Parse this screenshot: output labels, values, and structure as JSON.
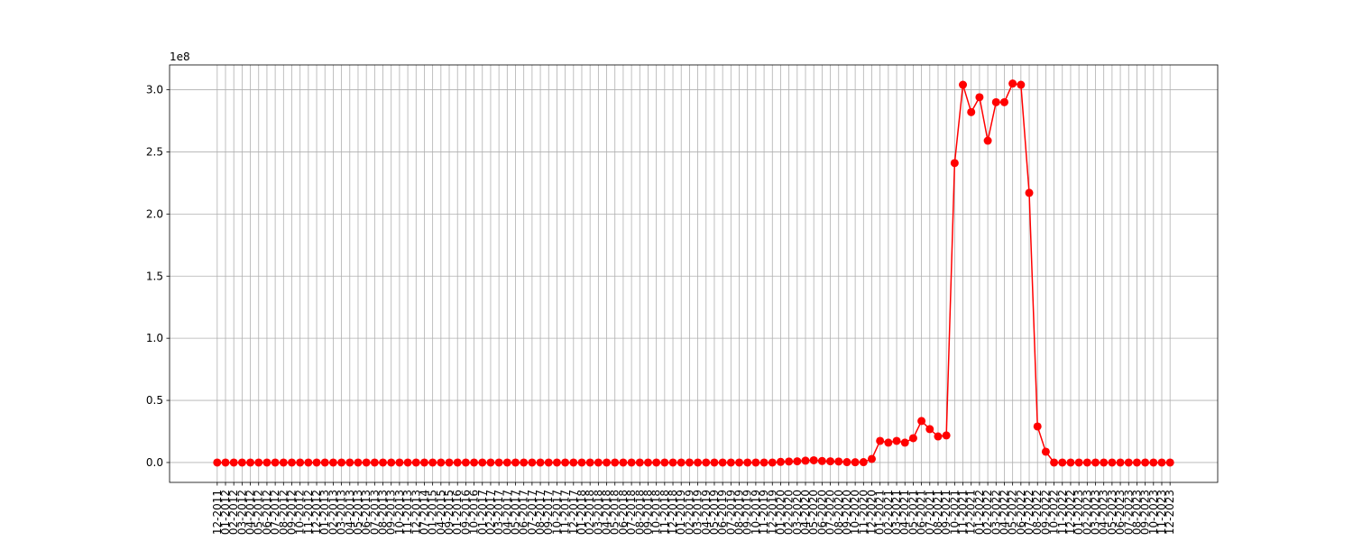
{
  "chart_data": {
    "type": "line",
    "categories": [
      "12-2011",
      "01-2012",
      "02-2012",
      "03-2012",
      "04-2012",
      "05-2012",
      "06-2012",
      "07-2012",
      "08-2012",
      "09-2012",
      "10-2012",
      "11-2012",
      "12-2012",
      "01-2013",
      "02-2013",
      "03-2013",
      "04-2013",
      "05-2013",
      "06-2013",
      "07-2013",
      "08-2013",
      "09-2013",
      "10-2013",
      "11-2013",
      "12-2013",
      "07-2014",
      "01-2015",
      "04-2015",
      "09-2015",
      "01-2016",
      "09-2016",
      "10-2016",
      "01-2017",
      "02-2017",
      "03-2017",
      "04-2017",
      "05-2017",
      "06-2017",
      "07-2017",
      "08-2017",
      "09-2017",
      "10-2017",
      "11-2017",
      "12-2017",
      "01-2018",
      "02-2018",
      "03-2018",
      "04-2018",
      "05-2018",
      "06-2018",
      "07-2018",
      "08-2018",
      "09-2018",
      "10-2018",
      "11-2018",
      "12-2018",
      "01-2019",
      "02-2019",
      "03-2019",
      "04-2019",
      "05-2019",
      "06-2019",
      "07-2019",
      "08-2019",
      "09-2019",
      "10-2019",
      "11-2019",
      "12-2019",
      "01-2020",
      "02-2020",
      "03-2020",
      "04-2020",
      "05-2020",
      "06-2020",
      "07-2020",
      "08-2020",
      "09-2020",
      "10-2020",
      "11-2020",
      "12-2020",
      "01-2021",
      "02-2021",
      "03-2021",
      "04-2021",
      "05-2021",
      "06-2021",
      "07-2021",
      "08-2021",
      "09-2021",
      "10-2021",
      "11-2021",
      "12-2021",
      "01-2022",
      "02-2022",
      "03-2022",
      "04-2022",
      "05-2022",
      "06-2022",
      "07-2022",
      "08-2022",
      "09-2022",
      "10-2022",
      "11-2022",
      "12-2022",
      "01-2023",
      "02-2023",
      "03-2023",
      "04-2023",
      "05-2023",
      "06-2023",
      "07-2023",
      "08-2023",
      "09-2023",
      "10-2023",
      "11-2023",
      "12-2023"
    ],
    "series": [
      {
        "color": "#ff0000",
        "values": [
          0,
          0,
          0,
          0,
          0,
          0,
          0,
          0,
          0,
          0,
          0,
          0,
          0,
          0,
          0,
          0,
          0,
          0,
          0,
          0,
          0,
          0,
          0,
          0,
          0,
          0,
          0,
          0,
          0,
          0,
          0,
          0,
          0,
          0,
          0,
          0,
          0,
          0,
          0,
          0,
          0,
          0,
          0,
          0,
          0,
          0,
          0,
          0,
          0,
          0,
          0,
          0,
          0,
          0,
          0,
          0,
          0,
          0,
          0,
          0,
          0,
          0,
          0,
          0,
          0,
          0,
          0,
          0,
          500000,
          800000,
          1000000,
          1500000,
          1800000,
          1200000,
          1000000,
          800000,
          300000,
          200000,
          300000,
          2900000,
          17400000,
          16000000,
          17400000,
          16000000,
          19600000,
          33400000,
          26900000,
          21000000,
          21800000,
          241000000,
          304000000,
          282000000,
          294000000,
          259000000,
          290000000,
          290000000,
          305000000,
          304000000,
          217000000,
          29000000,
          8700000,
          0,
          0,
          0,
          0,
          0,
          0,
          0,
          0,
          0,
          0,
          0,
          0,
          0,
          0,
          0
        ]
      }
    ],
    "ylim": [
      -16000000,
      320000000
    ],
    "yticks": [
      {
        "value": 0,
        "label": "0.0"
      },
      {
        "value": 50000000,
        "label": "0.5"
      },
      {
        "value": 100000000,
        "label": "1.0"
      },
      {
        "value": 150000000,
        "label": "1.5"
      },
      {
        "value": 200000000,
        "label": "2.0"
      },
      {
        "value": 250000000,
        "label": "2.5"
      },
      {
        "value": 300000000,
        "label": "3.0"
      }
    ],
    "y_offset_label": "1e8",
    "grid": true
  }
}
